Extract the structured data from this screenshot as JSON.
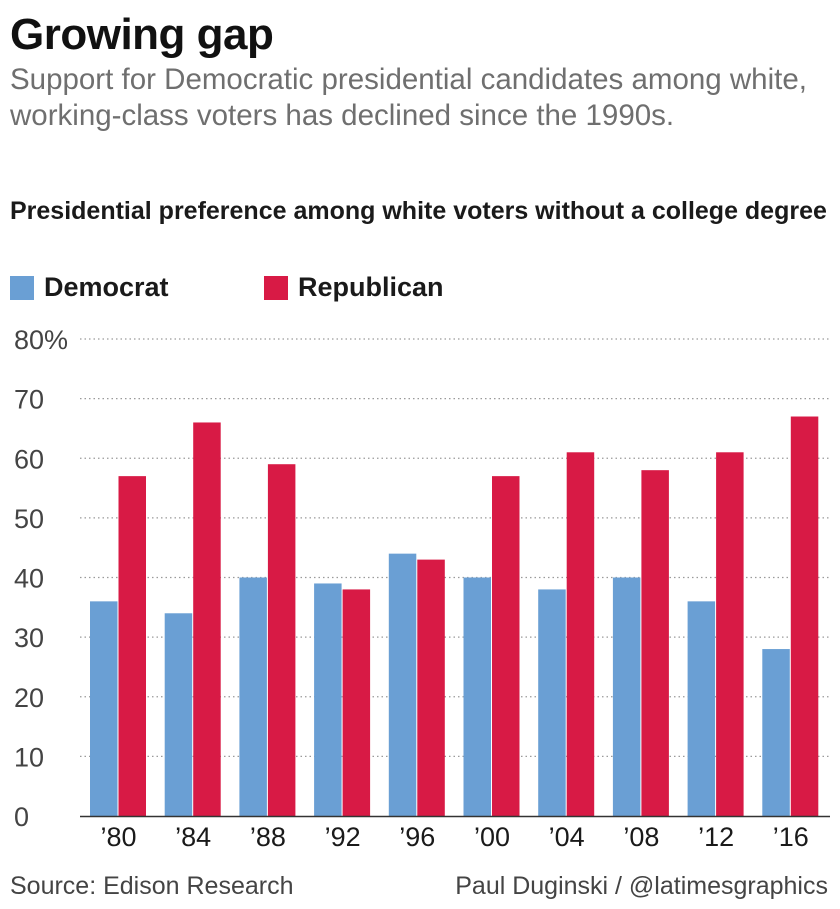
{
  "title": "Growing gap",
  "subtitle": "Support for Democratic presidential candidates among white, working-class voters has declined since the 1990s.",
  "source": "Source: Edison Research",
  "credit": "Paul Duginski / @latimesgraphics",
  "chart_data": {
    "type": "bar",
    "title": "Presidential preference among white voters without a college degree",
    "categories": [
      "’80",
      "’84",
      "’88",
      "’92",
      "’96",
      "’00",
      "’04",
      "’08",
      "’12",
      "’16"
    ],
    "series": [
      {
        "name": "Democrat",
        "color": "#6a9fd4",
        "values": [
          36,
          34,
          40,
          39,
          44,
          40,
          38,
          40,
          36,
          28
        ]
      },
      {
        "name": "Republican",
        "color": "#d81a45",
        "values": [
          57,
          66,
          59,
          38,
          43,
          57,
          61,
          58,
          61,
          67
        ]
      }
    ],
    "y_ticks": [
      "0",
      "10",
      "20",
      "30",
      "40",
      "50",
      "60",
      "70",
      "80%"
    ],
    "ylim": [
      0,
      80
    ],
    "grid": true,
    "grid_style": "dotted",
    "legend_position": "top-left",
    "xlabel": "",
    "ylabel": ""
  }
}
